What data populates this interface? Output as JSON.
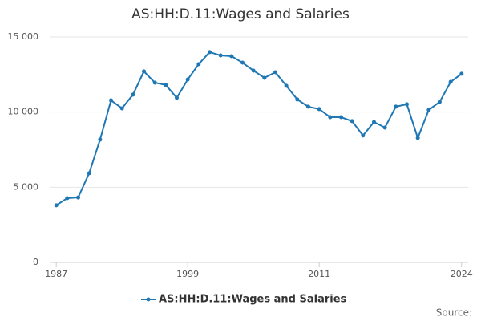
{
  "chart_data": {
    "type": "line",
    "title": "AS:HH:D.11:Wages and Salaries",
    "x": [
      1987,
      1988,
      1989,
      1990,
      1991,
      1992,
      1993,
      1994,
      1995,
      1996,
      1997,
      1998,
      1999,
      2000,
      2001,
      2002,
      2003,
      2004,
      2005,
      2006,
      2007,
      2008,
      2009,
      2010,
      2011,
      2012,
      2013,
      2014,
      2015,
      2016,
      2017,
      2018,
      2019,
      2020,
      2021,
      2022,
      2023,
      2024
    ],
    "series": [
      {
        "name": "AS:HH:D.11:Wages and Salaries",
        "color": "#1f77b4",
        "values": [
          3800,
          4270,
          4320,
          5930,
          8170,
          10780,
          10250,
          11160,
          12710,
          11960,
          11800,
          10950,
          12170,
          13190,
          13990,
          13770,
          13720,
          13290,
          12760,
          12280,
          12650,
          11750,
          10840,
          10360,
          10200,
          9660,
          9660,
          9400,
          8440,
          9340,
          8970,
          10360,
          10520,
          8280,
          10140,
          10680,
          12010,
          12550
        ]
      }
    ],
    "xlim": [
      1986.4,
      2024.6
    ],
    "xticks": [
      1987,
      1999,
      2011,
      2024
    ],
    "ylim": [
      0,
      15000
    ],
    "yticks": [
      0,
      {
        "value": 5000,
        "label": "5 000"
      },
      {
        "value": 10000,
        "label": "10 000"
      },
      {
        "value": 15000,
        "label": "15 000"
      }
    ],
    "grid": true,
    "source": "Source:"
  }
}
